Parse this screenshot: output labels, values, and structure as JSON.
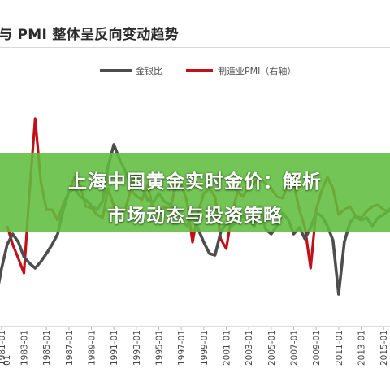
{
  "header": {
    "title": "与 PMI 整体呈反向变动趋势"
  },
  "overlay": {
    "line1": "上海中国黄金实时金价：解析",
    "line2": "市场动态与投资策略"
  },
  "colors": {
    "gold": "#4d4d4d",
    "pmi": "#c0101a",
    "banner": "#60be3e"
  },
  "chart_data": {
    "type": "line",
    "legend_position": "top-center",
    "grid": false,
    "x_tick_labels": [
      "1981-01",
      "1983-01",
      "1985-01",
      "1987-01",
      "1989-01",
      "1991-01",
      "1993-01",
      "1995-01",
      "1997-01",
      "1999-01",
      "2001-01",
      "2003-01",
      "2005-01",
      "2007-01",
      "2009-01",
      "2011-01",
      "2013-01",
      "2015-01"
    ],
    "x": [
      1980,
      1980.5,
      1981,
      1981.5,
      1982,
      1982.5,
      1983,
      1983.5,
      1984,
      1984.5,
      1985,
      1985.5,
      1986,
      1986.5,
      1987,
      1987.5,
      1988,
      1988.5,
      1989,
      1989.5,
      1990,
      1990.5,
      1991,
      1991.5,
      1992,
      1992.5,
      1993,
      1993.5,
      1994,
      1994.5,
      1995,
      1995.5,
      1996,
      1996.5,
      1997,
      1997.5,
      1998,
      1998.5,
      1999,
      1999.5,
      2000,
      2000.5,
      2001,
      2001.5,
      2002,
      2002.5,
      2003,
      2003.5,
      2004,
      2004.5,
      2005,
      2005.5,
      2006,
      2006.5,
      2007,
      2007.5,
      2008,
      2008.5,
      2009,
      2009.5,
      2010,
      2010.5,
      2011,
      2011.5,
      2012,
      2012.5,
      2013,
      2013.5,
      2014,
      2014.5,
      2015,
      2015.5,
      2016
    ],
    "series": [
      {
        "name": "金银比",
        "color": "#4d4d4d",
        "values": [
          388,
          372,
          335,
          305,
          292,
          302,
          320,
          328,
          334,
          326,
          316,
          305,
          292,
          262,
          240,
          236,
          246,
          250,
          257,
          262,
          252,
          208,
          182,
          200,
          214,
          232,
          218,
          234,
          250,
          253,
          242,
          252,
          256,
          262,
          274,
          282,
          270,
          286,
          302,
          316,
          318,
          290,
          278,
          282,
          276,
          270,
          276,
          282,
          258,
          286,
          292,
          282,
          266,
          274,
          292,
          284,
          298,
          284,
          266,
          270,
          282,
          300,
          366,
          302,
          278,
          270,
          275,
          272,
          282,
          272,
          268,
          262,
          254
        ]
      },
      {
        "name": "制造业PMI（右轴）",
        "color": "#c0101a",
        "values": [
          null,
          null,
          null,
          282,
          305,
          322,
          340,
          240,
          150,
          228,
          262,
          262,
          275,
          255,
          240,
          222,
          232,
          258,
          260,
          268,
          272,
          236,
          258,
          268,
          262,
          238,
          245,
          250,
          232,
          262,
          266,
          258,
          262,
          232,
          230,
          252,
          302,
          265,
          242,
          236,
          246,
          298,
          310,
          268,
          240,
          246,
          232,
          228,
          224,
          230,
          236,
          246,
          248,
          232,
          230,
          262,
          284,
          334,
          262,
          238,
          222,
          236,
          268,
          262,
          258,
          270,
          272,
          264,
          258,
          256,
          262,
          264,
          262
        ]
      }
    ]
  }
}
